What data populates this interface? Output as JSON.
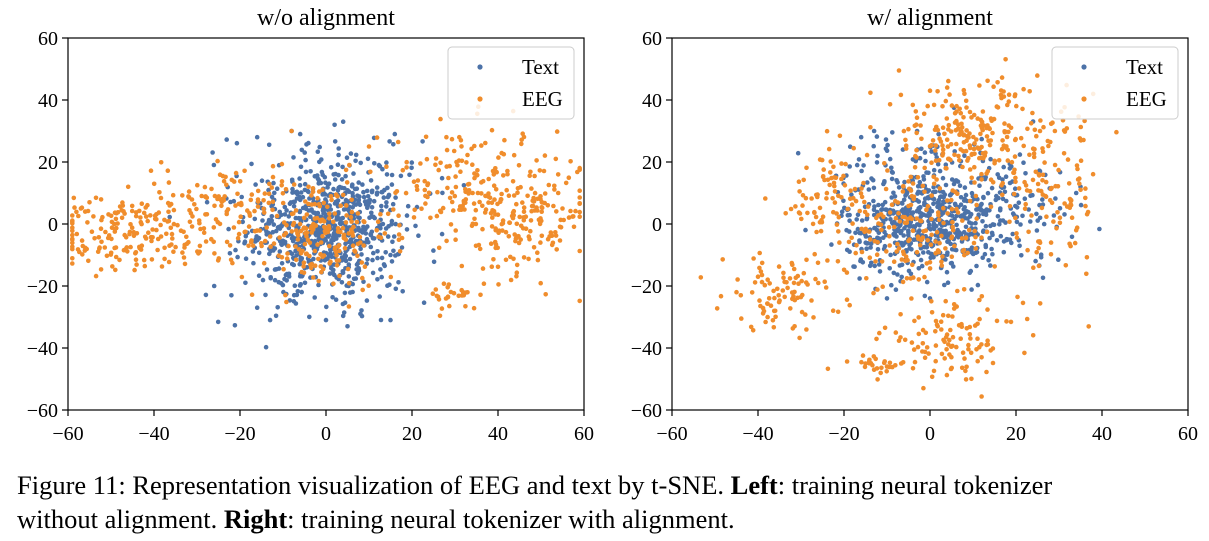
{
  "chart_data": [
    {
      "type": "scatter",
      "title": "w/o alignment",
      "xlabel": "",
      "ylabel": "",
      "xlim": [
        -60,
        60
      ],
      "ylim": [
        -60,
        60
      ],
      "xticks": [
        -60,
        -40,
        -20,
        0,
        20,
        40,
        60
      ],
      "yticks": [
        -60,
        -40,
        -20,
        0,
        20,
        40,
        60
      ],
      "grid": false,
      "legend_position": "top-right",
      "series": [
        {
          "name": "Text",
          "color": "#4c72a8",
          "clusters": [
            {
              "cx": 0,
              "cy": -2,
              "sx": 9,
              "sy": 9,
              "n": 620
            },
            {
              "cx": 0,
              "cy": 14,
              "sx": 11,
              "sy": 8,
              "n": 90
            },
            {
              "cx": 0,
              "cy": -20,
              "sx": 12,
              "sy": 6,
              "n": 60
            }
          ],
          "points": [
            [
              4,
              33
            ],
            [
              -8,
              30
            ],
            [
              -6,
              29
            ],
            [
              2,
              32
            ],
            [
              16,
              29
            ],
            [
              -16,
              28
            ],
            [
              5,
              -33
            ],
            [
              0,
              -31
            ],
            [
              -13,
              -31
            ],
            [
              -16,
              -27
            ],
            [
              -26,
              -20
            ],
            [
              -22,
              -23
            ],
            [
              15,
              -31
            ],
            [
              8,
              -29
            ]
          ]
        },
        {
          "name": "EEG",
          "color": "#f08d2c",
          "clusters": [
            {
              "cx": -3,
              "cy": -3,
              "sx": 9,
              "sy": 9,
              "n": 230
            },
            {
              "cx": -48,
              "cy": -4,
              "sx": 9,
              "sy": 6,
              "n": 120
            },
            {
              "cx": -36,
              "cy": 2,
              "sx": 8,
              "sy": 7,
              "n": 70
            },
            {
              "cx": -24,
              "cy": 7,
              "sx": 7,
              "sy": 8,
              "n": 70
            },
            {
              "cx": 44,
              "cy": 4,
              "sx": 9,
              "sy": 10,
              "n": 220
            },
            {
              "cx": 30,
              "cy": 14,
              "sx": 9,
              "sy": 9,
              "n": 90
            },
            {
              "cx": 30,
              "cy": -23,
              "sx": 3,
              "sy": 2.5,
              "n": 25
            }
          ],
          "points": [
            [
              -56,
              4
            ],
            [
              -57,
              5
            ],
            [
              -55,
              7
            ],
            [
              54,
              16
            ],
            [
              52,
              -4
            ],
            [
              55,
              5
            ],
            [
              54,
              10
            ],
            [
              31,
              28
            ],
            [
              28,
              28
            ],
            [
              -46,
              12
            ],
            [
              -8,
              30
            ],
            [
              10,
              25
            ]
          ]
        }
      ]
    },
    {
      "type": "scatter",
      "title": "w/ alignment",
      "xlabel": "",
      "ylabel": "",
      "xlim": [
        -60,
        60
      ],
      "ylim": [
        -60,
        60
      ],
      "xticks": [
        -60,
        -40,
        -20,
        0,
        20,
        40,
        60
      ],
      "yticks": [
        -60,
        -40,
        -20,
        0,
        20,
        40,
        60
      ],
      "grid": false,
      "legend_position": "top-right",
      "series": [
        {
          "name": "Text",
          "color": "#4c72a8",
          "clusters": [
            {
              "cx": -2,
              "cy": 0,
              "sx": 9,
              "sy": 8,
              "n": 520
            },
            {
              "cx": 16,
              "cy": 6,
              "sx": 9,
              "sy": 9,
              "n": 140
            },
            {
              "cx": -5,
              "cy": 20,
              "sx": 8,
              "sy": 6,
              "n": 60
            }
          ],
          "points": [
            [
              35,
              12
            ],
            [
              34,
              10
            ],
            [
              -13,
              30
            ],
            [
              -16,
              28
            ],
            [
              -3,
              30
            ],
            [
              2,
              29
            ],
            [
              12,
              -5
            ],
            [
              -10,
              -24
            ],
            [
              0,
              -24
            ]
          ]
        },
        {
          "name": "EEG",
          "color": "#f08d2c",
          "clusters": [
            {
              "cx": 10,
              "cy": 28,
              "sx": 11,
              "sy": 9,
              "n": 240
            },
            {
              "cx": -34,
              "cy": -22,
              "sx": 7,
              "sy": 6,
              "n": 90
            },
            {
              "cx": -23,
              "cy": 8,
              "sx": 7,
              "sy": 8,
              "n": 80
            },
            {
              "cx": 5,
              "cy": -37,
              "sx": 8,
              "sy": 6,
              "n": 110
            },
            {
              "cx": 27,
              "cy": 8,
              "sx": 6,
              "sy": 12,
              "n": 110
            },
            {
              "cx": -3,
              "cy": -4,
              "sx": 9,
              "sy": 8,
              "n": 160
            },
            {
              "cx": -13,
              "cy": -45,
              "sx": 4,
              "sy": 1.5,
              "n": 25
            }
          ],
          "points": [
            [
              4,
              44
            ],
            [
              0,
              43
            ],
            [
              8,
              42
            ],
            [
              -45,
              -22
            ],
            [
              -44,
              -23
            ],
            [
              -40,
              -17
            ],
            [
              -36,
              -28
            ],
            [
              -13,
              -47
            ],
            [
              -10,
              -46
            ],
            [
              -15,
              -45
            ],
            [
              12,
              -43
            ],
            [
              34,
              -2
            ]
          ]
        }
      ]
    }
  ],
  "caption": {
    "prefix": "Figure 11: Representation visualization of EEG and text by t-SNE. ",
    "left_label": "Left",
    "left_text": ": training neural tokenizer",
    "line2_prefix": "without alignment. ",
    "right_label": "Right",
    "right_text": ": training neural tokenizer with alignment."
  }
}
